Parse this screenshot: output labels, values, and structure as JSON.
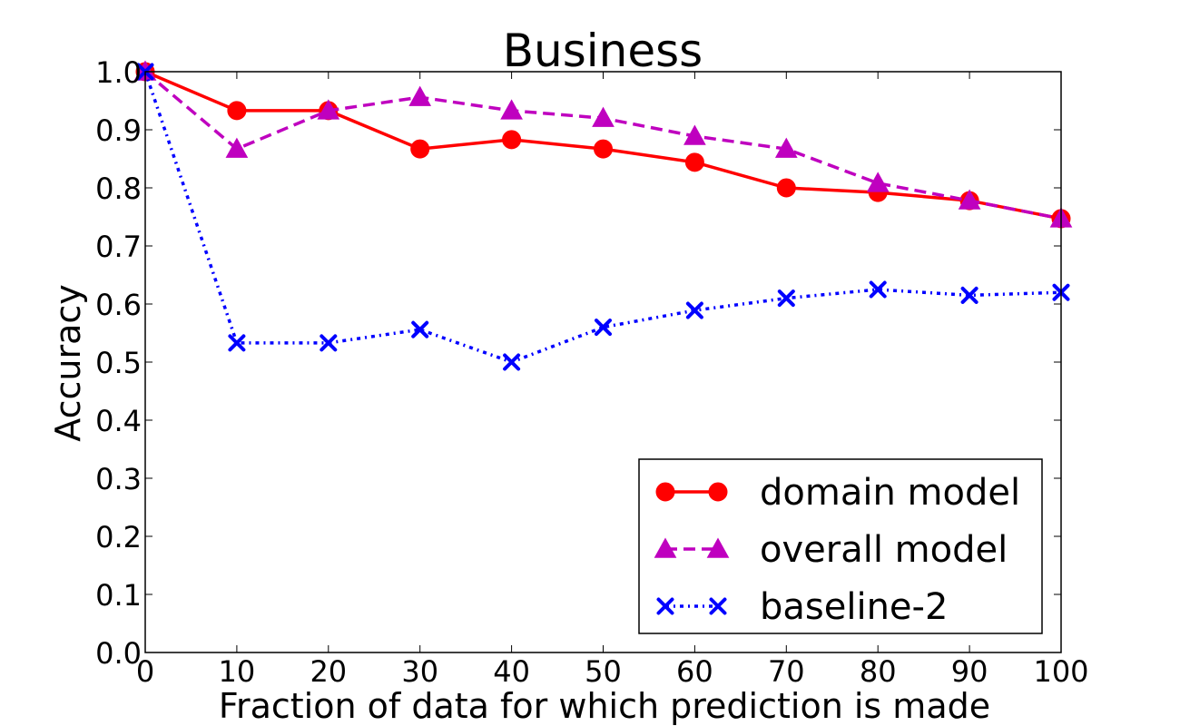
{
  "chart_data": {
    "type": "line",
    "title": "Business",
    "xlabel": "Fraction of data for which prediction is made",
    "ylabel": "Accuracy",
    "xlim": [
      0,
      100
    ],
    "ylim": [
      0.0,
      1.0
    ],
    "x_ticks": [
      "0",
      "10",
      "20",
      "30",
      "40",
      "50",
      "60",
      "70",
      "80",
      "90",
      "100"
    ],
    "y_ticks": [
      "0.0",
      "0.1",
      "0.2",
      "0.3",
      "0.4",
      "0.5",
      "0.6",
      "0.7",
      "0.8",
      "0.9",
      "1.0"
    ],
    "grid": false,
    "legend_position": "bottom-right",
    "x": [
      0,
      10,
      20,
      30,
      40,
      50,
      60,
      70,
      80,
      90,
      100
    ],
    "series": [
      {
        "name": "domain model",
        "color": "#ff0000",
        "line_style": "solid",
        "marker": "circle",
        "values": [
          1.0,
          0.933,
          0.933,
          0.867,
          0.883,
          0.867,
          0.844,
          0.8,
          0.792,
          0.778,
          0.747
        ]
      },
      {
        "name": "overall model",
        "color": "#bf00bf",
        "line_style": "dashed",
        "marker": "triangle",
        "values": [
          1.0,
          0.867,
          0.933,
          0.956,
          0.933,
          0.92,
          0.889,
          0.867,
          0.808,
          0.778,
          0.747
        ]
      },
      {
        "name": "baseline-2",
        "color": "#0000ff",
        "line_style": "dash-dot",
        "marker": "x",
        "values": [
          1.0,
          0.533,
          0.533,
          0.556,
          0.5,
          0.56,
          0.589,
          0.61,
          0.625,
          0.615,
          0.62
        ]
      }
    ]
  }
}
